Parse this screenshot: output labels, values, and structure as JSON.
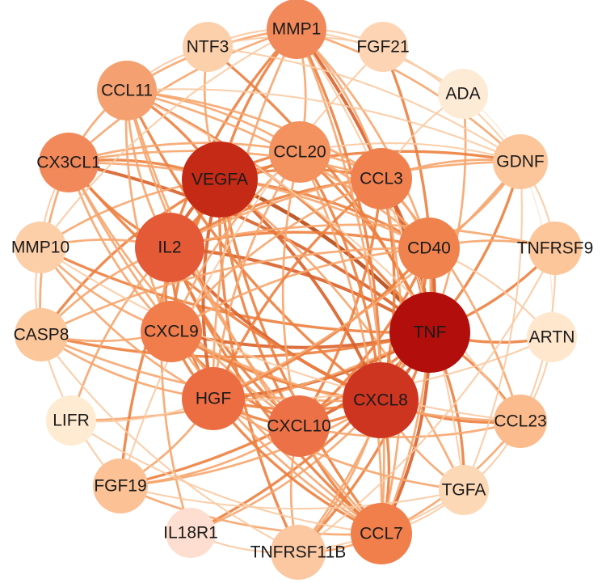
{
  "nodes": [
    {
      "id": "MMP1",
      "label": "MMP1",
      "color": "#f2895a"
    },
    {
      "id": "NTF3",
      "label": "NTF3",
      "color": "#fdd0ac"
    },
    {
      "id": "FGF21",
      "label": "FGF21",
      "color": "#fdd5b4"
    },
    {
      "id": "ADA",
      "label": "ADA",
      "color": "#feebd6"
    },
    {
      "id": "CCL11",
      "label": "CCL11",
      "color": "#f5a070"
    },
    {
      "id": "CX3CL1",
      "label": "CX3CL1",
      "color": "#f2895a"
    },
    {
      "id": "GDNF",
      "label": "GDNF",
      "color": "#fdc69a"
    },
    {
      "id": "CCL20",
      "label": "CCL20",
      "color": "#f3915f"
    },
    {
      "id": "VEGFA",
      "label": "VEGFA",
      "color": "#c42a16"
    },
    {
      "id": "CCL3",
      "label": "CCL3",
      "color": "#f0814f"
    },
    {
      "id": "MMP10",
      "label": "MMP10",
      "color": "#fdcfa8"
    },
    {
      "id": "IL2",
      "label": "IL2",
      "color": "#e45a36"
    },
    {
      "id": "CD40",
      "label": "CD40",
      "color": "#f0824e"
    },
    {
      "id": "TNFRSF9",
      "label": "TNFRSF9",
      "color": "#fdc59a"
    },
    {
      "id": "CASP8",
      "label": "CASP8",
      "color": "#fdc79c"
    },
    {
      "id": "CXCL9",
      "label": "CXCL9",
      "color": "#f07d4b"
    },
    {
      "id": "TNF",
      "label": "TNF",
      "color": "#b20f0c"
    },
    {
      "id": "ARTN",
      "label": "ARTN",
      "color": "#fee7cd"
    },
    {
      "id": "LIFR",
      "label": "LIFR",
      "color": "#feebd2"
    },
    {
      "id": "HGF",
      "label": "HGF",
      "color": "#ec6d41"
    },
    {
      "id": "CXCL10",
      "label": "CXCL10",
      "color": "#ec7146"
    },
    {
      "id": "CXCL8",
      "label": "CXCL8",
      "color": "#cd3520"
    },
    {
      "id": "CCL23",
      "label": "CCL23",
      "color": "#fcbb8d"
    },
    {
      "id": "FGF19",
      "label": "FGF19",
      "color": "#fcc195"
    },
    {
      "id": "TGFA",
      "label": "TGFA",
      "color": "#fdd8b6"
    },
    {
      "id": "IL18R1",
      "label": "IL18R1",
      "color": "#feded0"
    },
    {
      "id": "TNFRSF11B",
      "label": "TNFRSF11B",
      "color": "#fcc8a2"
    },
    {
      "id": "CCL7",
      "label": "CCL7",
      "color": "#f17f4b"
    }
  ],
  "edges": [
    [
      "TNF",
      "VEGFA"
    ],
    [
      "TNF",
      "IL2"
    ],
    [
      "TNF",
      "CXCL8"
    ],
    [
      "TNF",
      "CXCL9"
    ],
    [
      "TNF",
      "CXCL10"
    ],
    [
      "TNF",
      "HGF"
    ],
    [
      "TNF",
      "CCL20"
    ],
    [
      "TNF",
      "CCL3"
    ],
    [
      "TNF",
      "CD40"
    ],
    [
      "TNF",
      "MMP1"
    ],
    [
      "TNF",
      "CCL11"
    ],
    [
      "TNF",
      "CX3CL1"
    ],
    [
      "TNF",
      "CASP8"
    ],
    [
      "TNF",
      "CCL7"
    ],
    [
      "TNF",
      "CCL23"
    ],
    [
      "TNF",
      "TGFA"
    ],
    [
      "TNF",
      "GDNF"
    ],
    [
      "TNF",
      "TNFRSF9"
    ],
    [
      "TNF",
      "ARTN"
    ],
    [
      "TNF",
      "MMP10"
    ],
    [
      "TNF",
      "FGF19"
    ],
    [
      "TNF",
      "TNFRSF11B"
    ],
    [
      "TNF",
      "IL18R1"
    ],
    [
      "TNF",
      "LIFR"
    ],
    [
      "TNF",
      "NTF3"
    ],
    [
      "TNF",
      "FGF21"
    ],
    [
      "TNF",
      "ADA"
    ],
    [
      "VEGFA",
      "IL2"
    ],
    [
      "VEGFA",
      "CXCL8"
    ],
    [
      "VEGFA",
      "CXCL9"
    ],
    [
      "VEGFA",
      "CXCL10"
    ],
    [
      "VEGFA",
      "HGF"
    ],
    [
      "VEGFA",
      "CCL20"
    ],
    [
      "VEGFA",
      "CCL3"
    ],
    [
      "VEGFA",
      "CD40"
    ],
    [
      "VEGFA",
      "MMP1"
    ],
    [
      "VEGFA",
      "CCL11"
    ],
    [
      "VEGFA",
      "CX3CL1"
    ],
    [
      "VEGFA",
      "MMP10"
    ],
    [
      "VEGFA",
      "CASP8"
    ],
    [
      "VEGFA",
      "CCL7"
    ],
    [
      "VEGFA",
      "GDNF"
    ],
    [
      "VEGFA",
      "TGFA"
    ],
    [
      "VEGFA",
      "FGF19"
    ],
    [
      "VEGFA",
      "NTF3"
    ],
    [
      "VEGFA",
      "TNFRSF11B"
    ],
    [
      "CXCL8",
      "IL2"
    ],
    [
      "CXCL8",
      "CXCL9"
    ],
    [
      "CXCL8",
      "CXCL10"
    ],
    [
      "CXCL8",
      "HGF"
    ],
    [
      "CXCL8",
      "CCL20"
    ],
    [
      "CXCL8",
      "CCL3"
    ],
    [
      "CXCL8",
      "CD40"
    ],
    [
      "CXCL8",
      "MMP1"
    ],
    [
      "CXCL8",
      "CCL11"
    ],
    [
      "CXCL8",
      "CX3CL1"
    ],
    [
      "CXCL8",
      "CCL7"
    ],
    [
      "CXCL8",
      "CCL23"
    ],
    [
      "CXCL8",
      "TGFA"
    ],
    [
      "CXCL8",
      "CASP8"
    ],
    [
      "CXCL8",
      "TNFRSF11B"
    ],
    [
      "CXCL8",
      "IL18R1"
    ],
    [
      "CXCL8",
      "FGF19"
    ],
    [
      "IL2",
      "CXCL9"
    ],
    [
      "IL2",
      "CXCL10"
    ],
    [
      "IL2",
      "HGF"
    ],
    [
      "IL2",
      "CCL20"
    ],
    [
      "IL2",
      "CCL3"
    ],
    [
      "IL2",
      "CD40"
    ],
    [
      "IL2",
      "MMP1"
    ],
    [
      "IL2",
      "CCL11"
    ],
    [
      "IL2",
      "CX3CL1"
    ],
    [
      "IL2",
      "MMP10"
    ],
    [
      "IL2",
      "CASP8"
    ],
    [
      "IL2",
      "CCL7"
    ],
    [
      "IL2",
      "TNFRSF9"
    ],
    [
      "IL2",
      "IL18R1"
    ],
    [
      "IL2",
      "LIFR"
    ],
    [
      "IL2",
      "GDNF"
    ],
    [
      "CXCL9",
      "CXCL10"
    ],
    [
      "CXCL9",
      "HGF"
    ],
    [
      "CXCL9",
      "CCL20"
    ],
    [
      "CXCL9",
      "CCL3"
    ],
    [
      "CXCL9",
      "CD40"
    ],
    [
      "CXCL9",
      "CCL11"
    ],
    [
      "CXCL9",
      "CX3CL1"
    ],
    [
      "CXCL9",
      "CASP8"
    ],
    [
      "CXCL9",
      "CCL7"
    ],
    [
      "CXCL9",
      "CCL23"
    ],
    [
      "CXCL9",
      "MMP10"
    ],
    [
      "CXCL10",
      "HGF"
    ],
    [
      "CXCL10",
      "CCL20"
    ],
    [
      "CXCL10",
      "CCL3"
    ],
    [
      "CXCL10",
      "CD40"
    ],
    [
      "CXCL10",
      "CCL11"
    ],
    [
      "CXCL10",
      "CX3CL1"
    ],
    [
      "CXCL10",
      "CCL7"
    ],
    [
      "CXCL10",
      "CCL23"
    ],
    [
      "CXCL10",
      "TNFRSF11B"
    ],
    [
      "CXCL10",
      "FGF19"
    ],
    [
      "HGF",
      "CCL20"
    ],
    [
      "HGF",
      "CCL3"
    ],
    [
      "HGF",
      "CD40"
    ],
    [
      "HGF",
      "MMP1"
    ],
    [
      "HGF",
      "CCL7"
    ],
    [
      "HGF",
      "MMP10"
    ],
    [
      "HGF",
      "TGFA"
    ],
    [
      "HGF",
      "FGF19"
    ],
    [
      "HGF",
      "LIFR"
    ],
    [
      "HGF",
      "CASP8"
    ],
    [
      "HGF",
      "GDNF"
    ],
    [
      "HGF",
      "ARTN"
    ],
    [
      "CCL20",
      "CCL3"
    ],
    [
      "CCL20",
      "CD40"
    ],
    [
      "CCL20",
      "MMP1"
    ],
    [
      "CCL20",
      "CCL11"
    ],
    [
      "CCL20",
      "CX3CL1"
    ],
    [
      "CCL20",
      "CCL7"
    ],
    [
      "CCL20",
      "GDNF"
    ],
    [
      "CCL3",
      "CD40"
    ],
    [
      "CCL3",
      "MMP1"
    ],
    [
      "CCL3",
      "CCL11"
    ],
    [
      "CCL3",
      "CX3CL1"
    ],
    [
      "CCL3",
      "CCL7"
    ],
    [
      "CCL3",
      "CCL23"
    ],
    [
      "CCL3",
      "GDNF"
    ],
    [
      "CCL3",
      "ADA"
    ],
    [
      "CD40",
      "MMP1"
    ],
    [
      "CD40",
      "CCL11"
    ],
    [
      "CD40",
      "CX3CL1"
    ],
    [
      "CD40",
      "CCL7"
    ],
    [
      "CD40",
      "TNFRSF9"
    ],
    [
      "CD40",
      "TNFRSF11B"
    ],
    [
      "CD40",
      "CASP8"
    ],
    [
      "CD40",
      "GDNF"
    ],
    [
      "CD40",
      "ARTN"
    ],
    [
      "MMP1",
      "CCL11"
    ],
    [
      "MMP1",
      "CX3CL1"
    ],
    [
      "MMP1",
      "MMP10"
    ],
    [
      "MMP1",
      "CCL7"
    ],
    [
      "MMP1",
      "NTF3"
    ],
    [
      "MMP1",
      "GDNF"
    ],
    [
      "MMP1",
      "TGFA"
    ],
    [
      "MMP1",
      "FGF21"
    ],
    [
      "MMP1",
      "ADA"
    ],
    [
      "CCL11",
      "CX3CL1"
    ],
    [
      "CCL11",
      "CCL7"
    ],
    [
      "CCL11",
      "CCL23"
    ],
    [
      "CCL11",
      "GDNF"
    ],
    [
      "CCL11",
      "NTF3"
    ],
    [
      "CX3CL1",
      "CCL7"
    ],
    [
      "CX3CL1",
      "MMP10"
    ],
    [
      "CX3CL1",
      "CASP8"
    ],
    [
      "CCL7",
      "CCL23"
    ],
    [
      "CCL7",
      "TGFA"
    ],
    [
      "CCL7",
      "TNFRSF11B"
    ],
    [
      "CCL7",
      "FGF19"
    ],
    [
      "GDNF",
      "ARTN"
    ],
    [
      "GDNF",
      "NTF3"
    ],
    [
      "GDNF",
      "TGFA"
    ],
    [
      "GDNF",
      "FGF21"
    ],
    [
      "GDNF",
      "TNFRSF9"
    ],
    [
      "TNFRSF9",
      "TNFRSF11B"
    ],
    [
      "TNFRSF9",
      "CCL23"
    ],
    [
      "TGFA",
      "FGF19"
    ],
    [
      "TGFA",
      "CCL23"
    ],
    [
      "TGFA",
      "TNFRSF11B"
    ],
    [
      "FGF19",
      "FGF21"
    ],
    [
      "FGF19",
      "CASP8"
    ],
    [
      "CASP8",
      "TNFRSF11B"
    ],
    [
      "CASP8",
      "MMP10"
    ],
    [
      "MMP10",
      "CCL23"
    ],
    [
      "IL18R1",
      "TNFRSF11B"
    ],
    [
      "LIFR",
      "CCL7"
    ],
    [
      "NTF3",
      "FGF21"
    ],
    [
      "ARTN",
      "CCL23"
    ],
    [
      "ADA",
      "GDNF"
    ]
  ]
}
